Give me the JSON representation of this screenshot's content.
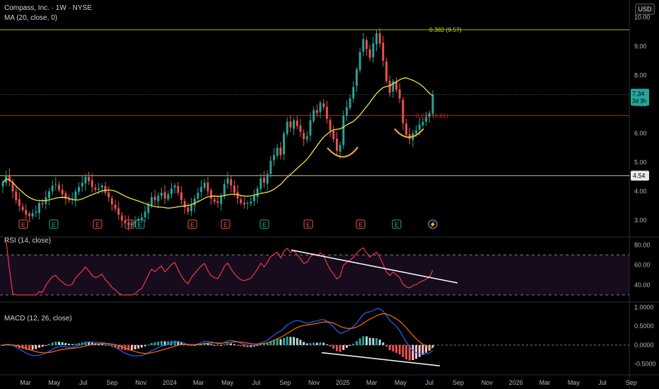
{
  "header": {
    "symbol_line": "Compass, Inc. · 1W · NYSE",
    "ma_line": "MA (20, close, 0)",
    "currency_button": "USD"
  },
  "colors": {
    "background": "#000000",
    "candle_up": "#26a69a",
    "candle_down": "#ef5350",
    "ma": "#f0e442",
    "rsi": "#f23645",
    "rsi_band": "#2a1637",
    "macd": "#2962ff",
    "signal": "#ff6d00",
    "fib_382": "#c5d42e",
    "fib_236": "#c62828",
    "support": "#f0e68c",
    "annotation": "#f7b731",
    "trendline": "#ffffff"
  },
  "chart_data": [
    {
      "type": "candlestick",
      "title": "Compass, Inc. · 1W · NYSE",
      "overlay_label": "MA (20, close, 0)",
      "y_ticks": [
        "3.00",
        "4.00",
        "5.00",
        "6.00",
        "7.00",
        "8.00",
        "9.00",
        "10.00"
      ],
      "ylim": [
        2.6,
        10.35
      ],
      "x_ticks": [
        "Mar",
        "May",
        "Jul",
        "Sep",
        "Nov",
        "2024",
        "Mar",
        "May",
        "Jul",
        "Sep",
        "Nov",
        "2025",
        "Mar",
        "May",
        "Jul",
        "Sep",
        "Nov",
        "2026",
        "Mar",
        "May",
        "Jul",
        "Sep"
      ],
      "weekly_closes_approx": [
        4.3,
        4.55,
        4.35,
        4.0,
        3.7,
        3.5,
        3.35,
        3.2,
        3.15,
        3.25,
        3.3,
        3.6,
        3.55,
        3.8,
        4.0,
        4.2,
        4.25,
        4.05,
        3.9,
        3.75,
        3.7,
        3.75,
        4.0,
        4.15,
        4.3,
        4.5,
        4.35,
        4.15,
        4.05,
        4.1,
        4.2,
        3.95,
        3.8,
        3.55,
        3.4,
        3.2,
        3.0,
        2.9,
        2.85,
        2.9,
        2.95,
        3.05,
        3.1,
        3.3,
        3.55,
        3.8,
        3.7,
        3.85,
        3.95,
        3.75,
        3.9,
        4.1,
        4.2,
        3.95,
        3.7,
        3.45,
        3.3,
        3.55,
        3.75,
        3.95,
        4.15,
        4.3,
        4.0,
        3.75,
        3.65,
        3.6,
        3.85,
        4.25,
        4.45,
        4.2,
        3.95,
        3.75,
        3.6,
        3.55,
        3.6,
        3.65,
        3.85,
        4.1,
        4.45,
        4.3,
        4.6,
        5.05,
        5.25,
        5.5,
        5.25,
        6.0,
        6.4,
        6.2,
        6.45,
        6.25,
        6.05,
        5.8,
        5.9,
        6.45,
        6.8,
        6.7,
        7.05,
        6.9,
        6.5,
        6.1,
        5.8,
        5.4,
        5.6,
        6.6,
        6.9,
        7.2,
        7.6,
        8.2,
        8.8,
        9.25,
        8.9,
        8.6,
        9.1,
        9.45,
        9.1,
        8.5,
        7.8,
        7.4,
        7.8,
        7.5,
        7.2,
        6.35,
        5.95,
        5.8,
        6.0,
        6.1,
        6.3,
        6.4,
        6.55,
        6.7,
        7.34
      ],
      "ma_period": 20,
      "series": [
        {
          "name": "MA (20, close, 0)",
          "type": "line"
        }
      ],
      "price_lines": [
        {
          "label": "0.382 (9.57)",
          "value": 9.57
        },
        {
          "label": "0.236 (6.61)",
          "value": 6.61
        },
        {
          "label": "4.54",
          "value": 4.54
        }
      ],
      "last_price": {
        "price": "7.34",
        "countdown": "3d 3h"
      },
      "earnings_markers": [
        "E",
        "E",
        "E",
        "E",
        "E",
        "E",
        "E",
        "E",
        "E",
        "E",
        "E"
      ],
      "annotations": [
        "cup-under-december-2024-low",
        "cup-under-may-2025-low"
      ]
    },
    {
      "type": "line",
      "title": "RSI (14, close)",
      "y_ticks": [
        "40.00",
        "60.00",
        "80.00"
      ],
      "ylim": [
        25,
        86
      ],
      "bands": [
        70,
        30
      ],
      "trendline": {
        "from": 75,
        "to": 42
      }
    },
    {
      "type": "bar",
      "title": "MACD (12, 26, close)",
      "y_ticks": [
        "-0.5000",
        "0.0000",
        "0.5000",
        "1.0000"
      ],
      "ylim": [
        -0.75,
        1.12
      ],
      "series": [
        {
          "type": "line"
        },
        {
          "type": "line"
        },
        {
          "type": "bar"
        }
      ],
      "trendline": {
        "from": -0.2,
        "to": -0.55
      }
    }
  ]
}
